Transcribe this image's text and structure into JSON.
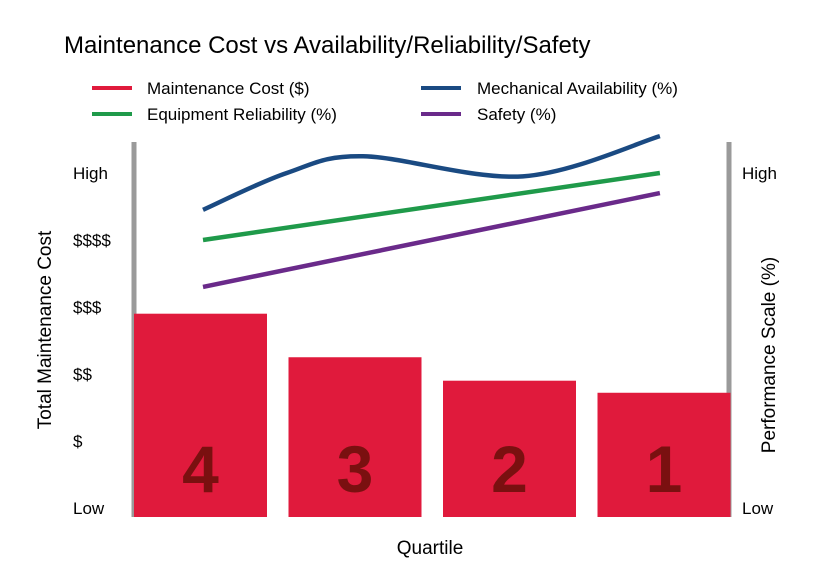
{
  "chart_data": {
    "type": "bar",
    "title": "Maintenance Cost vs Availability/Reliability/Safety",
    "xlabel": "Quartile",
    "ylabel": "Total Maintenance Cost",
    "y2label": "Performance Scale (%)",
    "legend_position": "top",
    "grid": false,
    "categories": [
      "4",
      "3",
      "2",
      "1"
    ],
    "y_ticks": [
      "Low",
      "$",
      "$$",
      "$$$",
      "$$$$",
      "High"
    ],
    "y2_ticks": [
      "Low",
      "High"
    ],
    "ylim": [
      0,
      5
    ],
    "bars": {
      "name": "Maintenance Cost ($)",
      "color": "#e01a3c",
      "values": [
        2.9,
        2.25,
        1.9,
        1.72
      ]
    },
    "lines": [
      {
        "name": "Mechanical Availability (%)",
        "color": "#1a4a82",
        "smooth": true,
        "x": [
          0,
          0.55,
          1.05,
          2.1,
          3.0
        ],
        "values": [
          4.45,
          5.0,
          5.25,
          4.95,
          5.55
        ]
      },
      {
        "name": "Equipment Reliability (%)",
        "color": "#1f9a4a",
        "x": [
          0,
          3.0
        ],
        "values": [
          4.0,
          5.0
        ]
      },
      {
        "name": "Safety (%)",
        "color": "#6a2a8a",
        "x": [
          0,
          3.0
        ],
        "values": [
          3.3,
          4.7
        ]
      }
    ]
  }
}
